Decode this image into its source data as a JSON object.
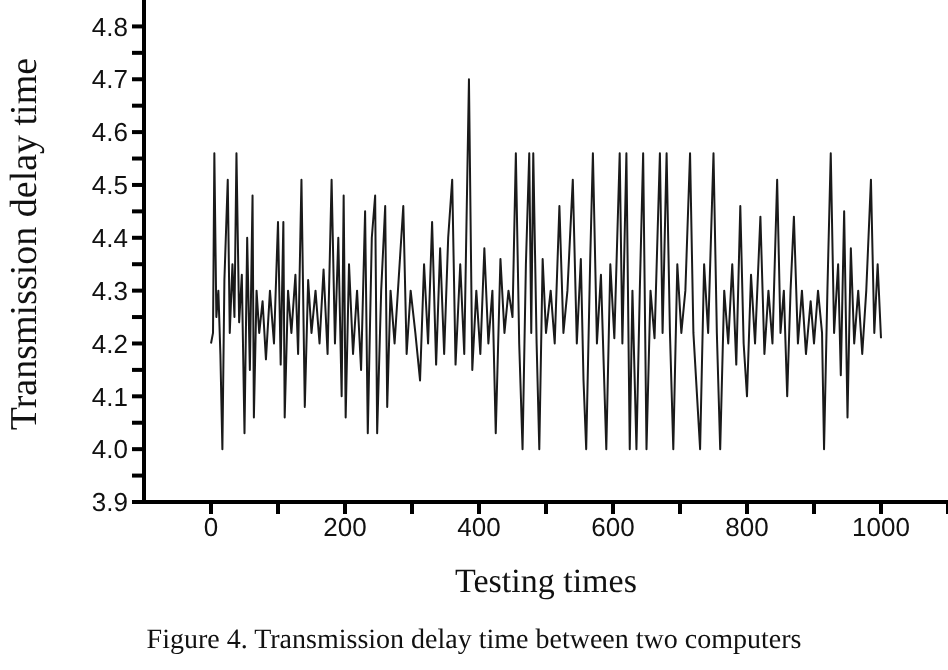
{
  "chart_data": {
    "type": "line",
    "xlabel": "Testing times",
    "ylabel": "Transmission delay time",
    "annotations": [
      "Figure 4. Transmission delay time between two computers"
    ],
    "xlim": [
      -100,
      1100
    ],
    "ylim": [
      3.9,
      4.85
    ],
    "xticks": [
      0,
      {
        "value": 100,
        "label": null
      },
      200,
      {
        "value": 300,
        "label": null
      },
      400,
      {
        "value": 500,
        "label": null
      },
      600,
      {
        "value": 700,
        "label": null
      },
      800,
      {
        "value": 900,
        "label": null
      },
      1000,
      {
        "value": 1100,
        "label": null
      }
    ],
    "yticks": [
      3.9,
      {
        "value": 3.95,
        "label": null
      },
      {
        "value": 4,
        "label": "4.0"
      },
      {
        "value": 4.05,
        "label": null
      },
      4.1,
      {
        "value": 4.15,
        "label": null
      },
      4.2,
      {
        "value": 4.25,
        "label": null
      },
      4.3,
      {
        "value": 4.35,
        "label": null
      },
      4.4,
      {
        "value": 4.45,
        "label": null
      },
      4.5,
      {
        "value": 4.55,
        "label": null
      },
      4.6,
      {
        "value": 4.65,
        "label": null
      },
      4.7,
      {
        "value": 4.75,
        "label": null
      },
      4.8
    ],
    "grid": false,
    "marker": "none",
    "line_style": "solid",
    "series": [
      {
        "color": "#1a1a1a",
        "x": [
          0,
          3,
          5,
          8,
          11,
          14,
          17,
          20,
          25,
          28,
          32,
          35,
          38,
          42,
          46,
          50,
          54,
          58,
          62,
          64,
          68,
          72,
          77,
          82,
          88,
          94,
          100,
          104,
          108,
          110,
          115,
          120,
          126,
          130,
          135,
          140,
          145,
          150,
          156,
          162,
          168,
          174,
          180,
          185,
          190,
          195,
          198,
          201,
          206,
          212,
          218,
          224,
          230,
          234,
          240,
          245,
          248,
          254,
          260,
          263,
          268,
          274,
          280,
          287,
          292,
          298,
          305,
          312,
          318,
          324,
          330,
          336,
          342,
          348,
          354,
          360,
          365,
          372,
          378,
          385,
          390,
          396,
          402,
          408,
          414,
          420,
          425,
          432,
          438,
          444,
          450,
          455,
          460,
          465,
          470,
          475,
          478,
          481,
          486,
          490,
          495,
          500,
          507,
          513,
          520,
          526,
          532,
          540,
          546,
          552,
          556,
          560,
          566,
          570,
          576,
          582,
          590,
          596,
          602,
          610,
          614,
          620,
          625,
          629,
          635,
          640,
          645,
          650,
          656,
          662,
          670,
          674,
          680,
          685,
          690,
          696,
          702,
          708,
          715,
          720,
          730,
          736,
          742,
          750,
          755,
          760,
          766,
          772,
          778,
          784,
          790,
          795,
          800,
          806,
          812,
          820,
          826,
          832,
          838,
          845,
          850,
          855,
          860,
          865,
          870,
          876,
          882,
          888,
          895,
          900,
          906,
          912,
          915,
          920,
          925,
          930,
          936,
          940,
          945,
          950,
          955,
          960,
          966,
          972,
          978,
          985,
          990,
          995,
          1000
        ],
        "values": [
          4.2,
          4.22,
          4.56,
          4.25,
          4.3,
          4.18,
          4.0,
          4.32,
          4.51,
          4.22,
          4.35,
          4.25,
          4.56,
          4.24,
          4.33,
          4.03,
          4.4,
          4.15,
          4.48,
          4.06,
          4.3,
          4.22,
          4.28,
          4.17,
          4.3,
          4.2,
          4.43,
          4.16,
          4.43,
          4.06,
          4.3,
          4.22,
          4.33,
          4.18,
          4.51,
          4.08,
          4.32,
          4.22,
          4.3,
          4.2,
          4.34,
          4.18,
          4.51,
          4.2,
          4.4,
          4.1,
          4.48,
          4.06,
          4.35,
          4.18,
          4.3,
          4.15,
          4.45,
          4.03,
          4.4,
          4.48,
          4.03,
          4.3,
          4.46,
          4.08,
          4.3,
          4.2,
          4.32,
          4.46,
          4.18,
          4.3,
          4.22,
          4.13,
          4.35,
          4.2,
          4.43,
          4.16,
          4.38,
          4.18,
          4.4,
          4.51,
          4.16,
          4.35,
          4.18,
          4.7,
          4.15,
          4.3,
          4.18,
          4.38,
          4.2,
          4.3,
          4.03,
          4.36,
          4.22,
          4.3,
          4.25,
          4.56,
          4.2,
          4.0,
          4.35,
          4.56,
          4.22,
          4.56,
          4.2,
          4.0,
          4.36,
          4.22,
          4.3,
          4.2,
          4.46,
          4.22,
          4.3,
          4.51,
          4.2,
          4.36,
          4.13,
          4.0,
          4.36,
          4.56,
          4.2,
          4.33,
          4.0,
          4.35,
          4.21,
          4.56,
          4.2,
          4.56,
          4.0,
          4.3,
          4.0,
          4.3,
          4.56,
          4.0,
          4.3,
          4.21,
          4.56,
          4.22,
          4.56,
          4.22,
          4.0,
          4.35,
          4.22,
          4.3,
          4.56,
          4.22,
          4.0,
          4.35,
          4.22,
          4.56,
          4.22,
          4.0,
          4.3,
          4.2,
          4.35,
          4.16,
          4.46,
          4.2,
          4.1,
          4.33,
          4.2,
          4.44,
          4.18,
          4.3,
          4.2,
          4.51,
          4.22,
          4.3,
          4.1,
          4.3,
          4.44,
          4.2,
          4.3,
          4.18,
          4.28,
          4.2,
          4.3,
          4.22,
          4.0,
          4.3,
          4.56,
          4.22,
          4.35,
          4.14,
          4.45,
          4.06,
          4.38,
          4.2,
          4.3,
          4.18,
          4.3,
          4.51,
          4.22,
          4.35,
          4.21
        ]
      }
    ]
  }
}
